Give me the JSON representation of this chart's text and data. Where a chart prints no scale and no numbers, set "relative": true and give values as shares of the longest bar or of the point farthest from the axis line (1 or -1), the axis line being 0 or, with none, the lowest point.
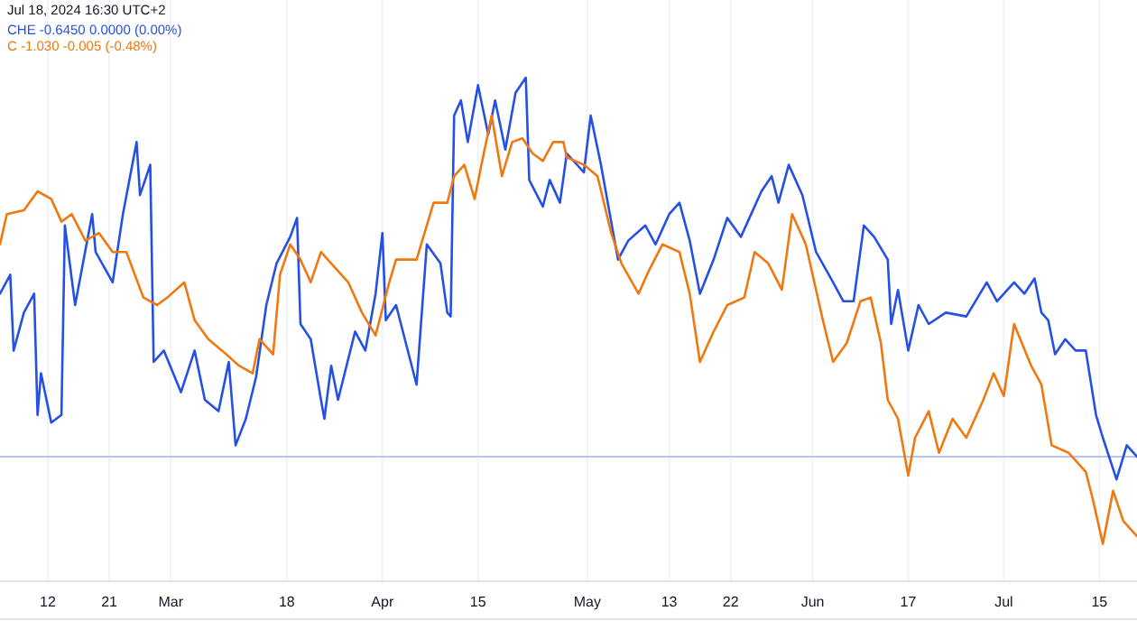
{
  "chart_data": {
    "type": "line",
    "relative": true,
    "annotations": [
      "Jul 18, 2024 16:30 UTC+2"
    ],
    "legend": "top left",
    "grid": "x",
    "line_style": "solid",
    "marker": "none",
    "xlim": [
      "2024-02-05",
      "2024-07-20T12:00"
    ],
    "xticks": [
      {
        "value": "2024-02-12",
        "label": "12"
      },
      {
        "value": "2024-02-21",
        "label": "21"
      },
      {
        "value": "2024-03-01",
        "label": "Mar"
      },
      {
        "value": "2024-03-18",
        "label": "18"
      },
      {
        "value": "2024-04-01",
        "label": "Apr"
      },
      {
        "value": "2024-04-15",
        "label": "15"
      },
      {
        "value": "2024-05-01",
        "label": "May"
      },
      {
        "value": "2024-05-13",
        "label": "13"
      },
      {
        "value": "2024-05-22",
        "label": "22"
      },
      {
        "value": "2024-06-03",
        "label": "Jun"
      },
      {
        "value": "2024-06-17",
        "label": "17"
      },
      {
        "value": "2024-07-01",
        "label": "Jul"
      },
      {
        "value": "2024-07-15",
        "label": "15"
      }
    ],
    "ref_lines": [
      {
        "axis": "y",
        "value": 0,
        "color": "#b8c6f0"
      }
    ],
    "series": [
      {
        "name": "CHE -0.6450 0.0000 (0.00%)",
        "color": "#2550e6",
        "x": [
          "2024-02-05",
          "2024-02-06T12:00",
          "2024-02-07",
          "2024-02-08T12:00",
          "2024-02-10",
          "2024-02-10T12:00",
          "2024-02-11",
          "2024-02-12T12:00",
          "2024-02-14",
          "2024-02-14T12:00",
          "2024-02-16",
          "2024-02-18T12:00",
          "2024-02-19",
          "2024-02-21T12:00",
          "2024-02-23",
          "2024-02-25",
          "2024-02-25T12:00",
          "2024-02-27",
          "2024-02-27T12:00",
          "2024-02-29",
          "2024-03-02T12:00",
          "2024-03-04T12:00",
          "2024-03-06",
          "2024-03-08",
          "2024-03-09T12:00",
          "2024-03-10T12:00",
          "2024-03-12",
          "2024-03-13T12:00",
          "2024-03-15",
          "2024-03-16T12:00",
          "2024-03-18T12:00",
          "2024-03-19T12:00",
          "2024-03-20",
          "2024-03-21T12:00",
          "2024-03-23",
          "2024-03-23T12:00",
          "2024-03-24T12:00",
          "2024-03-25T12:00",
          "2024-03-28",
          "2024-03-29T12:00",
          "2024-03-31",
          "2024-04-01",
          "2024-04-01T12:00",
          "2024-04-03",
          "2024-04-06",
          "2024-04-07T12:00",
          "2024-04-09T12:00",
          "2024-04-10T12:00",
          "2024-04-11",
          "2024-04-11T12:00",
          "2024-04-12T12:00",
          "2024-04-13T12:00",
          "2024-04-15",
          "2024-04-16T12:00",
          "2024-04-17T12:00",
          "2024-04-19",
          "2024-04-20T12:00",
          "2024-04-22",
          "2024-04-22T12:00",
          "2024-04-24T12:00",
          "2024-04-25T12:00",
          "2024-04-27",
          "2024-04-28",
          "2024-04-30T12:00",
          "2024-05-01T12:00",
          "2024-05-03",
          "2024-05-05T12:00",
          "2024-05-07",
          "2024-05-09T12:00",
          "2024-05-11",
          "2024-05-13",
          "2024-05-14T12:00",
          "2024-05-16",
          "2024-05-17T12:00",
          "2024-05-19T12:00",
          "2024-05-21T12:00",
          "2024-05-23T12:00",
          "2024-05-24T12:00",
          "2024-05-26T12:00",
          "2024-05-28",
          "2024-05-29",
          "2024-05-30T12:00",
          "2024-06-01T12:00",
          "2024-06-03T12:00",
          "2024-06-06",
          "2024-06-07T12:00",
          "2024-06-09",
          "2024-06-10T12:00",
          "2024-06-12",
          "2024-06-14",
          "2024-06-14T12:00",
          "2024-06-15T12:00",
          "2024-06-17",
          "2024-06-18T12:00",
          "2024-06-20",
          "2024-06-22T12:00",
          "2024-06-25T12:00",
          "2024-06-28T12:00",
          "2024-06-30",
          "2024-07-02T12:00",
          "2024-07-04",
          "2024-07-05T12:00",
          "2024-07-06T12:00",
          "2024-07-07T12:00",
          "2024-07-08T12:00",
          "2024-07-10",
          "2024-07-11T12:00",
          "2024-07-13",
          "2024-07-14T12:00",
          "2024-07-15T12:00",
          "2024-07-17T12:00",
          "2024-07-19",
          "2024-07-20T12:00"
        ],
        "values": [
          0.43,
          0.48,
          0.28,
          0.38,
          0.43,
          0.11,
          0.22,
          0.09,
          0.11,
          0.61,
          0.4,
          0.64,
          0.54,
          0.46,
          0.64,
          0.83,
          0.69,
          0.77,
          0.25,
          0.28,
          0.17,
          0.28,
          0.15,
          0.12,
          0.25,
          0.03,
          0.1,
          0.21,
          0.4,
          0.51,
          0.58,
          0.63,
          0.35,
          0.31,
          0.15,
          0.1,
          0.24,
          0.15,
          0.33,
          0.28,
          0.43,
          0.59,
          0.36,
          0.4,
          0.19,
          0.56,
          0.51,
          0.38,
          0.37,
          0.9,
          0.94,
          0.83,
          0.98,
          0.85,
          0.94,
          0.81,
          0.96,
          1,
          0.73,
          0.66,
          0.73,
          0.67,
          0.8,
          0.75,
          0.9,
          0.77,
          0.52,
          0.57,
          0.61,
          0.56,
          0.64,
          0.67,
          0.57,
          0.43,
          0.52,
          0.63,
          0.58,
          0.62,
          0.7,
          0.74,
          0.67,
          0.77,
          0.69,
          0.54,
          0.46,
          0.41,
          0.41,
          0.61,
          0.58,
          0.52,
          0.35,
          0.44,
          0.28,
          0.4,
          0.35,
          0.38,
          0.37,
          0.46,
          0.41,
          0.46,
          0.43,
          0.47,
          0.38,
          0.36,
          0.27,
          0.31,
          0.28,
          0.28,
          0.11,
          0.05,
          -0.06,
          0.03,
          0.0
        ]
      },
      {
        "name": "C -1.030 -0.005 (-0.48%)",
        "color": "#f07810",
        "x": [
          "2024-02-05",
          "2024-02-06",
          "2024-02-08T12:00",
          "2024-02-10T12:00",
          "2024-02-12T12:00",
          "2024-02-14",
          "2024-02-15T12:00",
          "2024-02-17T12:00",
          "2024-02-19T12:00",
          "2024-02-21T12:00",
          "2024-02-23T12:00",
          "2024-02-26",
          "2024-02-28",
          "2024-02-29T12:00",
          "2024-03-03",
          "2024-03-04T12:00",
          "2024-03-06T12:00",
          "2024-03-08T12:00",
          "2024-03-11",
          "2024-03-13",
          "2024-03-14",
          "2024-03-16",
          "2024-03-17",
          "2024-03-18T12:00",
          "2024-03-20",
          "2024-03-21T12:00",
          "2024-03-23",
          "2024-03-24T12:00",
          "2024-03-27",
          "2024-03-29",
          "2024-03-31",
          "2024-04-02",
          "2024-04-03",
          "2024-04-06",
          "2024-04-07",
          "2024-04-08T12:00",
          "2024-04-10T12:00",
          "2024-04-11T12:00",
          "2024-04-13",
          "2024-04-14T12:00",
          "2024-04-15T12:00",
          "2024-04-17",
          "2024-04-18T12:00",
          "2024-04-20",
          "2024-04-21T12:00",
          "2024-04-23",
          "2024-04-24T12:00",
          "2024-04-26",
          "2024-04-27T12:00",
          "2024-04-28",
          "2024-04-30T12:00",
          "2024-05-02T12:00",
          "2024-05-04T12:00",
          "2024-05-06",
          "2024-05-08T12:00",
          "2024-05-10",
          "2024-05-12",
          "2024-05-14T12:00",
          "2024-05-16",
          "2024-05-17T12:00",
          "2024-05-19T12:00",
          "2024-05-21T12:00",
          "2024-05-24",
          "2024-05-25T12:00",
          "2024-05-27T12:00",
          "2024-05-29T12:00",
          "2024-05-31",
          "2024-06-02",
          "2024-06-03T12:00",
          "2024-06-04T12:00",
          "2024-06-06",
          "2024-06-08",
          "2024-06-10",
          "2024-06-11T12:00",
          "2024-06-13",
          "2024-06-14",
          "2024-06-15T12:00",
          "2024-06-17",
          "2024-06-18",
          "2024-06-20",
          "2024-06-21T12:00",
          "2024-06-23T12:00",
          "2024-06-25T12:00",
          "2024-06-28",
          "2024-06-29T12:00",
          "2024-07-01",
          "2024-07-02T12:00",
          "2024-07-05",
          "2024-07-06T12:00",
          "2024-07-08",
          "2024-07-10T12:00",
          "2024-07-13",
          "2024-07-14",
          "2024-07-15T12:00",
          "2024-07-17",
          "2024-07-18T12:00",
          "2024-07-20T12:00"
        ],
        "values": [
          0.56,
          0.64,
          0.65,
          0.7,
          0.68,
          0.62,
          0.64,
          0.57,
          0.59,
          0.54,
          0.54,
          0.42,
          0.4,
          0.42,
          0.46,
          0.36,
          0.31,
          0.28,
          0.24,
          0.22,
          0.31,
          0.27,
          0.48,
          0.56,
          0.52,
          0.46,
          0.54,
          0.51,
          0.46,
          0.38,
          0.32,
          0.46,
          0.52,
          0.52,
          0.58,
          0.67,
          0.67,
          0.74,
          0.77,
          0.68,
          0.77,
          0.9,
          0.74,
          0.83,
          0.84,
          0.8,
          0.78,
          0.83,
          0.83,
          0.79,
          0.77,
          0.74,
          0.59,
          0.51,
          0.43,
          0.49,
          0.56,
          0.54,
          0.43,
          0.25,
          0.33,
          0.4,
          0.42,
          0.54,
          0.51,
          0.44,
          0.64,
          0.56,
          0.44,
          0.36,
          0.25,
          0.3,
          0.41,
          0.42,
          0.3,
          0.15,
          0.1,
          -0.05,
          0.05,
          0.12,
          0.01,
          0.1,
          0.05,
          0.15,
          0.22,
          0.16,
          0.35,
          0.24,
          0.19,
          0.03,
          0.01,
          -0.04,
          -0.11,
          -0.23,
          -0.09,
          -0.17,
          -0.21
        ]
      }
    ]
  }
}
